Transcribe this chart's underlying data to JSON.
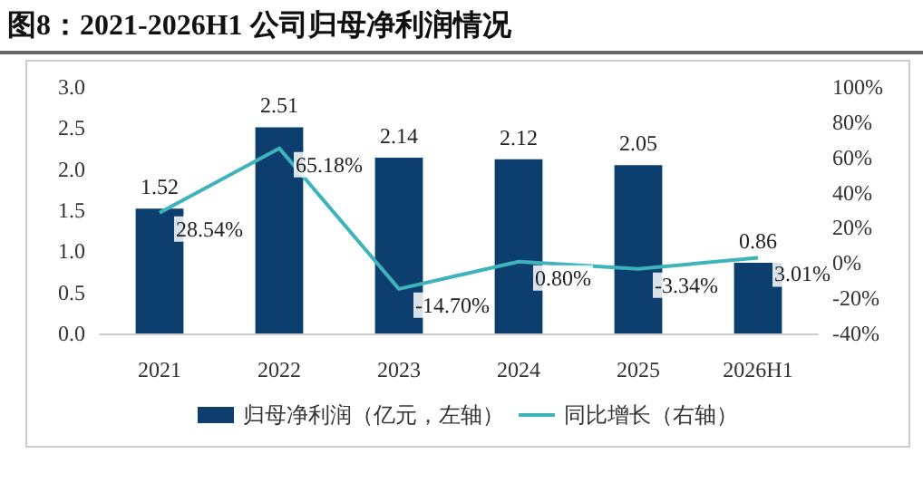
{
  "chart_data": {
    "type": "bar",
    "title": "图8：2021-2026H1 公司归母净利润情况",
    "categories": [
      "2021",
      "2022",
      "2023",
      "2024",
      "2025",
      "2026H1"
    ],
    "series": [
      {
        "name": "归母净利润（亿元，左轴）",
        "color": "#0d3f6e",
        "values": [
          1.52,
          2.51,
          2.14,
          2.12,
          2.05,
          0.86
        ],
        "value_labels": [
          "1.52",
          "2.51",
          "2.14",
          "2.12",
          "2.05",
          "0.86"
        ]
      },
      {
        "name": "同比增长（右轴）",
        "type": "line",
        "axis": "y2",
        "color": "#3fb3bb",
        "values": [
          28.54,
          65.18,
          -14.7,
          0.8,
          -3.34,
          3.01
        ],
        "value_labels": [
          "28.54%",
          "65.18%",
          "-14.70%",
          "0.80%",
          "-3.34%",
          "3.01%"
        ]
      }
    ],
    "ylim": [
      0,
      3
    ],
    "yticks": [
      {
        "value": 0,
        "label": "0.0"
      },
      {
        "value": 0.5,
        "label": "0.5"
      },
      {
        "value": 1,
        "label": "1.0"
      },
      {
        "value": 1.5,
        "label": "1.5"
      },
      {
        "value": 2,
        "label": "2.0"
      },
      {
        "value": 2.5,
        "label": "2.5"
      },
      {
        "value": 3,
        "label": "3.0"
      }
    ],
    "y2lim": [
      -40,
      100
    ],
    "y2ticks": [
      {
        "value": -40,
        "label": "-40%"
      },
      {
        "value": -20,
        "label": "-20%"
      },
      {
        "value": 0,
        "label": "0%"
      },
      {
        "value": 20,
        "label": "20%"
      },
      {
        "value": 40,
        "label": "40%"
      },
      {
        "value": 60,
        "label": "60%"
      },
      {
        "value": 80,
        "label": "80%"
      },
      {
        "value": 100,
        "label": "100%"
      }
    ],
    "grid": false,
    "legend": "bottom",
    "marker": "none"
  }
}
